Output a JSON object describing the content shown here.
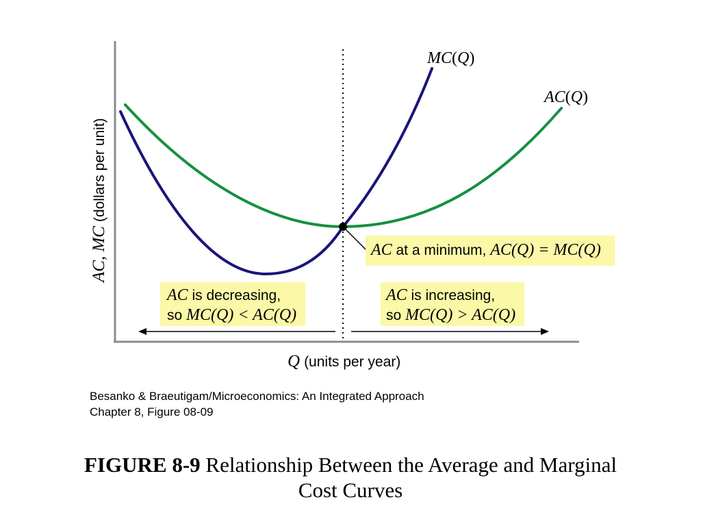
{
  "chart_data": {
    "type": "line",
    "title": "",
    "xlabel": "Q (units per year)",
    "ylabel": "AC, MC (dollars per unit)",
    "xlabel_var": "Q",
    "xlabel_rest": "(units per year)",
    "ylabel_var": "AC, MC",
    "ylabel_rest": "(dollars per unit)",
    "grid": false,
    "series": [
      {
        "name": "MC(Q)",
        "color": "#1a1578",
        "shape": "u-curve",
        "label_var": "MC",
        "label_arg": "Q"
      },
      {
        "name": "AC(Q)",
        "color": "#169040",
        "shape": "u-curve",
        "label_var": "AC",
        "label_arg": "Q"
      }
    ],
    "marker": {
      "label": "AC at a minimum, AC(Q) = MC(Q)",
      "color": "#000000"
    },
    "annotations": {
      "minimum": {
        "var1": "AC",
        "text1": " at a minimum, ",
        "expr": "AC(Q) = MC(Q)"
      },
      "decreasing": {
        "var": "AC",
        "line1": " is decreasing,",
        "so": "so ",
        "expr": "MC(Q) < AC(Q)"
      },
      "increasing": {
        "var": "AC",
        "line1": " is increasing,",
        "so": "so ",
        "expr": "MC(Q) > AC(Q)"
      }
    }
  },
  "source": {
    "line1": "Besanko & Braeutigam/Microeconomics: An Integrated Approach",
    "line2": "Chapter 8, Figure 08-09"
  },
  "figure": {
    "number": "FIGURE 8-9",
    "title": " Relationship Between the Average and Marginal Cost Curves"
  }
}
